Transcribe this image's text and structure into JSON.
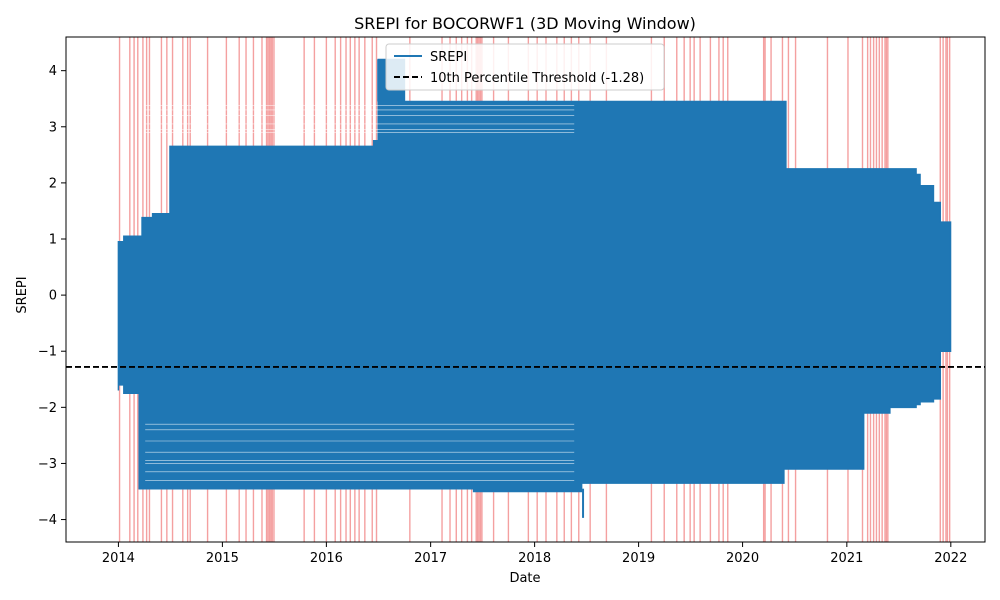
{
  "chart_data": {
    "type": "line",
    "title": "SREPI for BOCORWF1 (3D Moving Window)",
    "xlabel": "Date",
    "ylabel": "SREPI",
    "xlim": [
      "2013-07-01",
      "2022-05-01"
    ],
    "ylim": [
      -4.4,
      4.6
    ],
    "x_ticks": [
      "2014",
      "2015",
      "2016",
      "2017",
      "2018",
      "2019",
      "2020",
      "2021",
      "2022"
    ],
    "y_ticks": [
      -4,
      -3,
      -2,
      -1,
      0,
      1,
      2,
      3,
      4
    ],
    "grid": false,
    "legend_position": "top-center",
    "series": [
      {
        "name": "SREPI",
        "color": "#1f77b4",
        "envelope": {
          "x": [
            "2014-01-01",
            "2014-01-20",
            "2014-03-15",
            "2014-03-25",
            "2014-05-01",
            "2014-07-01",
            "2015-06-01",
            "2016-04-01",
            "2016-06-15",
            "2016-07-01",
            "2016-10-01",
            "2017-06-01",
            "2018-06-15",
            "2018-07-01",
            "2019-06-01",
            "2020-05-01",
            "2020-05-25",
            "2020-06-01",
            "2020-10-01",
            "2021-03-01",
            "2021-06-01",
            "2021-08-01",
            "2021-09-01",
            "2021-09-15",
            "2021-11-01",
            "2021-11-25",
            "2021-12-31"
          ],
          "upper": [
            0.95,
            1.05,
            1.05,
            1.38,
            1.45,
            2.65,
            2.65,
            2.65,
            2.75,
            4.2,
            3.45,
            3.45,
            3.45,
            3.45,
            3.45,
            3.45,
            3.45,
            2.25,
            2.25,
            2.25,
            2.25,
            2.25,
            2.15,
            1.95,
            1.65,
            1.3,
            0.7
          ],
          "lower": [
            -1.7,
            -1.6,
            -1.75,
            -3.45,
            -3.45,
            -3.45,
            -3.45,
            -3.45,
            -3.45,
            -3.45,
            -3.45,
            -3.45,
            -3.5,
            -3.35,
            -3.35,
            -3.35,
            -3.35,
            -3.1,
            -3.1,
            -3.1,
            -2.1,
            -2.0,
            -2.0,
            -1.95,
            -1.9,
            -1.85,
            -1.0
          ]
        },
        "extremes": [
          {
            "x": "2016-07-01",
            "y": 4.2
          },
          {
            "x": "2018-06-20",
            "y": -3.97
          }
        ]
      },
      {
        "name": "10th Percentile Threshold (-1.28)",
        "type": "hline",
        "y": -1.28,
        "color": "#000000",
        "dash": "dashed"
      }
    ],
    "drought_shading": {
      "color": "#f08080",
      "dates": [
        "2014-01-05",
        "2014-02-10",
        "2014-02-25",
        "2014-03-10",
        "2014-03-28",
        "2014-04-10",
        "2014-04-20",
        "2014-06-01",
        "2014-06-20",
        "2014-07-10",
        "2014-08-15",
        "2014-09-01",
        "2014-09-10",
        "2014-11-10",
        "2015-01-15",
        "2015-03-01",
        "2015-03-25",
        "2015-04-20",
        "2015-05-20",
        "2015-06-05",
        "2015-06-10",
        "2015-06-15",
        "2015-06-20",
        "2015-06-25",
        "2015-07-01",
        "2015-10-15",
        "2015-11-20",
        "2016-01-01",
        "2016-02-01",
        "2016-02-20",
        "2016-03-10",
        "2016-03-25",
        "2016-04-10",
        "2016-04-25",
        "2016-05-15",
        "2016-06-10",
        "2016-06-25",
        "2016-10-20",
        "2017-02-10",
        "2017-03-10",
        "2017-04-01",
        "2017-04-20",
        "2017-05-10",
        "2017-05-25",
        "2017-06-10",
        "2017-06-15",
        "2017-06-20",
        "2017-06-25",
        "2017-06-30",
        "2017-08-10",
        "2017-10-01",
        "2017-12-10",
        "2018-01-10",
        "2018-02-10",
        "2018-03-20",
        "2018-04-15",
        "2018-05-10",
        "2018-06-05",
        "2018-07-15",
        "2018-09-10",
        "2019-02-15",
        "2019-04-01",
        "2019-05-15",
        "2019-06-10",
        "2019-07-01",
        "2019-07-15",
        "2019-08-05",
        "2019-09-10",
        "2019-10-10",
        "2019-10-25",
        "2019-11-10",
        "2020-03-15",
        "2020-03-20",
        "2020-04-10",
        "2020-05-20",
        "2020-06-10",
        "2020-07-05",
        "2020-10-25",
        "2021-01-05",
        "2021-02-25",
        "2021-03-15",
        "2021-03-25",
        "2021-04-05",
        "2021-04-15",
        "2021-04-25",
        "2021-05-05",
        "2021-05-15",
        "2021-05-20",
        "2021-05-25",
        "2021-11-25",
        "2021-12-05",
        "2021-12-15",
        "2021-12-20",
        "2021-12-28"
      ]
    }
  }
}
